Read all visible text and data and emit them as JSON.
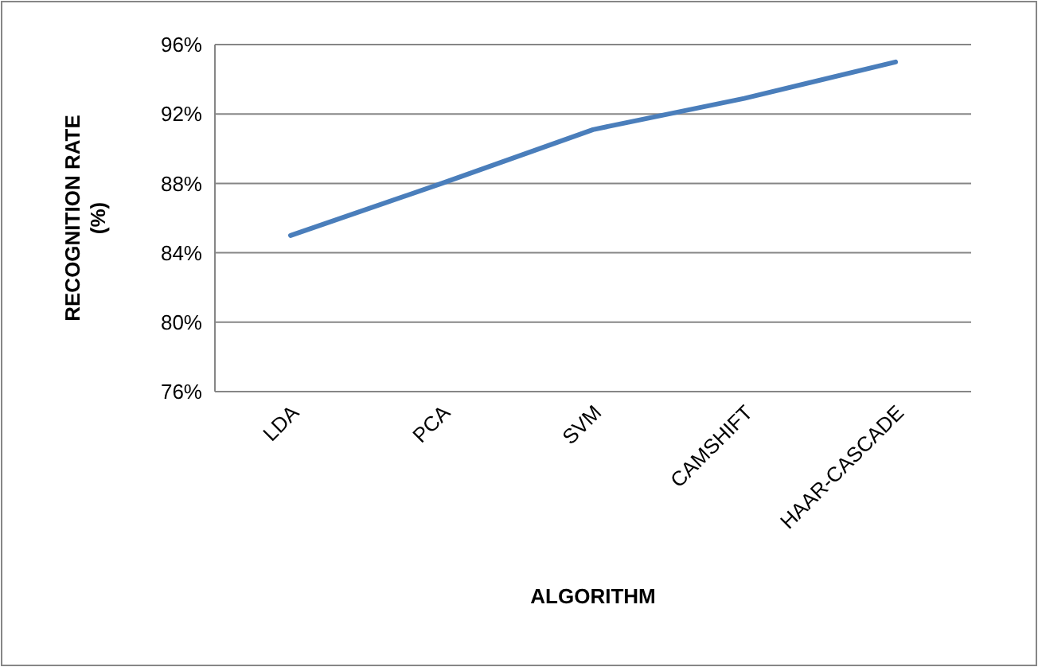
{
  "chart_data": {
    "type": "line",
    "xlabel": "ALGORITHM",
    "ylabel": "RECOGNITION RATE (%)",
    "categories": [
      "LDA",
      "PCA",
      "SVM",
      "CAMSHIFT",
      "HAAR-CASCADE"
    ],
    "series": [
      {
        "color": "#4a7ebb",
        "values": [
          85,
          88,
          91.1,
          92.9,
          95
        ]
      }
    ],
    "ylim": [
      76,
      96
    ],
    "yticks": [
      {
        "value": 76,
        "label": "76%"
      },
      {
        "value": 80,
        "label": "80%"
      },
      {
        "value": 84,
        "label": "84%"
      },
      {
        "value": 88,
        "label": "88%"
      },
      {
        "value": 92,
        "label": "92%"
      },
      {
        "value": 96,
        "label": "96%"
      }
    ],
    "grid": "y",
    "marker": "none",
    "line_style": "solid"
  }
}
